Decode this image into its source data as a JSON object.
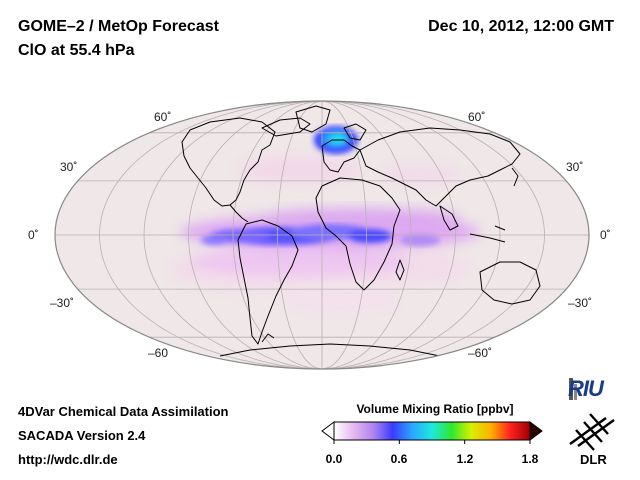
{
  "header": {
    "title_line1": "GOME–2 / MetOp Forecast",
    "title_line2": "ClO at 55.4 hPa",
    "datetime": "Dec 10, 2012, 12:00 GMT"
  },
  "map": {
    "projection": "Mollweide",
    "lat_labels_left": [
      "60˚",
      "30˚",
      "0˚",
      "–30˚",
      "–60"
    ],
    "lat_labels_right": [
      "60˚",
      "30˚",
      "0˚",
      "–30˚",
      "–60˚"
    ],
    "background_color": "#efe7e8",
    "coast_color": "#000000"
  },
  "footer": {
    "line1": "4DVar Chemical Data Assimilation",
    "line2": "SACADA Version 2.4",
    "line3": "http://wdc.dlr.de"
  },
  "colorbar": {
    "title": "Volume Mixing Ratio [ppbv]",
    "ticks": [
      "0.0",
      "0.6",
      "1.2",
      "1.8"
    ],
    "tick_values": [
      0.0,
      0.6,
      1.2,
      1.8
    ],
    "range": [
      0.0,
      1.8
    ],
    "colors": [
      "#ffffff",
      "#e6b8f0",
      "#b084f0",
      "#3a3cff",
      "#2aa8ff",
      "#1ee8e0",
      "#2ee82e",
      "#d8f000",
      "#ffb000",
      "#ff2020",
      "#a00000"
    ]
  },
  "logos": {
    "riu": "RIU",
    "dlr": "DLR"
  }
}
